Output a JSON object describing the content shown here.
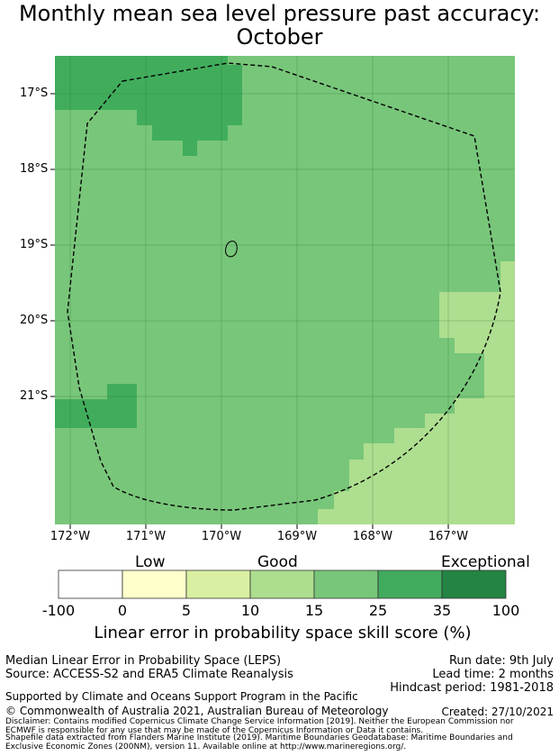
{
  "title_line1": "Monthly mean sea level pressure past accuracy:",
  "title_line2": "October",
  "colors": {
    "background_skill": "#78c67a",
    "high_skill": "#41ad5c",
    "medium_skill": "#aede8f",
    "coast": "#000000"
  },
  "map": {
    "lat_labels": [
      "17°S",
      "18°S",
      "19°S",
      "20°S",
      "21°S"
    ],
    "lon_labels": [
      "172°W",
      "171°W",
      "170°W",
      "169°W",
      "168°W",
      "167°W"
    ],
    "boundary_style": "dashed"
  },
  "colorbar": {
    "categories": [
      "Low",
      "Good",
      "Exceptional"
    ],
    "ticks": [
      "-100",
      "0",
      "5",
      "10",
      "15",
      "25",
      "35",
      "100"
    ],
    "colors": [
      "#ffffff",
      "#ffffcc",
      "#d9f0a3",
      "#addd8e",
      "#78c679",
      "#41ab5d",
      "#238443"
    ],
    "title": "Linear error in probability space skill score (%)"
  },
  "footer": {
    "left1": "Median Linear Error in Probability Space (LEPS)",
    "left2": "Source: ACCESS-S2 and ERA5 Climate Reanalysis",
    "right1": "Run date: 9th July",
    "right2": "Lead time: 2 months",
    "right3": "Hindcast period: 1981-2018",
    "support": "Supported by Climate and Oceans Support Program in the Pacific",
    "copyright": "© Commonwealth of Australia 2021, Australian Bureau of Meteorology",
    "created": "Created: 27/10/2021",
    "disclaimer1": "Disclaimer: Contains modified Copernicus Climate Change Service Information [2019]. Neither the European Commission nor",
    "disclaimer2": "ECMWF is responsible for any use that may be made of the Copernicus Information or Data it contains.",
    "shapefile1": "Shapefile data extracted from Flanders Marine Institute (2019). Maritime Boundaries Geodatabase: Maritime Boundaries and",
    "shapefile2": "Exclusive Economic Zones (200NM), version 11. Available online at http://www.marineregions.org/."
  }
}
